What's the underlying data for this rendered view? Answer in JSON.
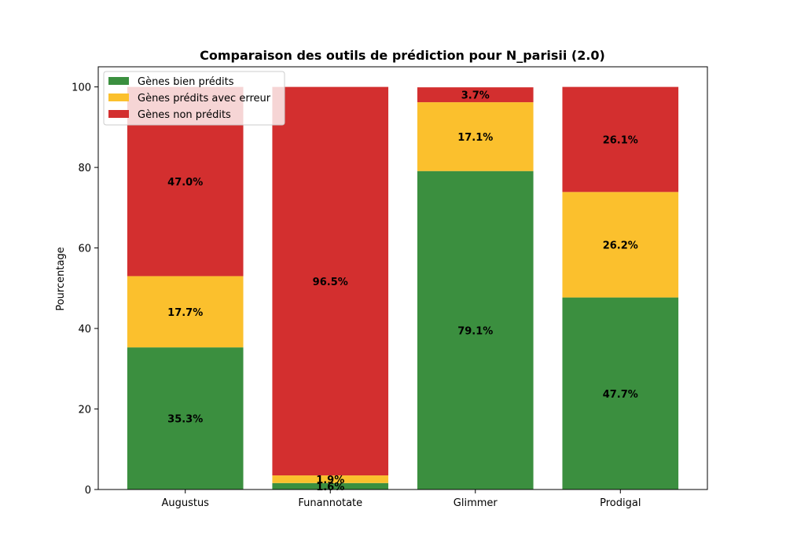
{
  "chart_data": {
    "type": "bar",
    "stacked": true,
    "title": "Comparaison des outils de prédiction pour N_parisii (2.0)",
    "xlabel": "",
    "ylabel": "Pourcentage",
    "ylim": [
      0,
      105
    ],
    "yticks": [
      0,
      20,
      40,
      60,
      80,
      100
    ],
    "categories": [
      "Augustus",
      "Funannotate",
      "Glimmer",
      "Prodigal"
    ],
    "series": [
      {
        "name": "Gènes bien prédits",
        "color": "#3b8f3f",
        "values": [
          35.3,
          1.6,
          79.1,
          47.7
        ],
        "labels": [
          "35.3%",
          "1.6%",
          "79.1%",
          "47.7%"
        ]
      },
      {
        "name": "Gènes prédits avec erreur",
        "color": "#fbc02d",
        "values": [
          17.7,
          1.9,
          17.1,
          26.2
        ],
        "labels": [
          "17.7%",
          "1.9%",
          "17.1%",
          "26.2%"
        ]
      },
      {
        "name": "Gènes non prédits",
        "color": "#d32f2f",
        "values": [
          47.0,
          96.5,
          3.7,
          26.1
        ],
        "labels": [
          "47.0%",
          "96.5%",
          "3.7%",
          "26.1%"
        ]
      }
    ],
    "legend": "top-left",
    "grid": false
  }
}
